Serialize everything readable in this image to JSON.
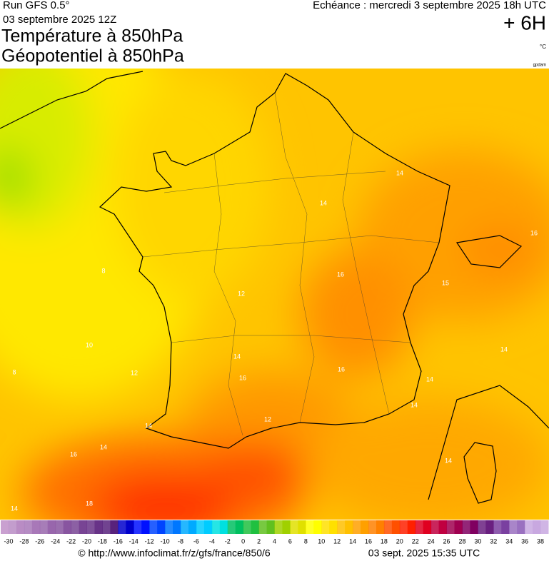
{
  "header": {
    "run": "Run GFS 0.5°",
    "date": "03 septembre 2025 12Z",
    "title1": "Température à 850hPa",
    "title2": "Géopotentiel à 850hPa",
    "echeance": "Echéance : mercredi 3 septembre 2025 18h UTC",
    "offset": "+ 6H",
    "unit": "°C",
    "credit": "gpdam"
  },
  "map": {
    "contour_labels": [
      "8",
      "8",
      "10",
      "12",
      "12",
      "14",
      "16",
      "16",
      "18",
      "14",
      "14",
      "14",
      "16",
      "16",
      "14",
      "14",
      "14",
      "14",
      "16",
      "15",
      "14",
      "12",
      "14"
    ]
  },
  "legend": {
    "labels": [
      -30,
      -28,
      -26,
      -24,
      -22,
      -20,
      -18,
      -16,
      -14,
      -12,
      -10,
      -8,
      -6,
      -4,
      -2,
      0,
      2,
      4,
      6,
      8,
      10,
      12,
      14,
      16,
      18,
      20,
      22,
      24,
      26,
      28,
      30,
      32,
      34,
      36,
      38
    ],
    "colors": [
      "#c9a0d0",
      "#b98cc4",
      "#a878b8",
      "#9866ac",
      "#8855a0",
      "#784494",
      "#683388",
      "#58227c",
      "#0000cc",
      "#0010ff",
      "#0044ff",
      "#0077ff",
      "#00aaff",
      "#00ccff",
      "#00e0e0",
      "#00c060",
      "#20c040",
      "#60c020",
      "#a0d000",
      "#e0e000",
      "#ffff00",
      "#ffe000",
      "#ffc000",
      "#ffa000",
      "#ff8000",
      "#ff5000",
      "#ff2000",
      "#e00020",
      "#c00040",
      "#a00050",
      "#800060",
      "#6a2080",
      "#7a40a0",
      "#9a70c0",
      "#c8a8e0"
    ]
  },
  "footer": {
    "url": "© http://www.infoclimat.fr/z/gfs/france/850/6",
    "generated": "03 sept. 2025 15:35 UTC"
  }
}
